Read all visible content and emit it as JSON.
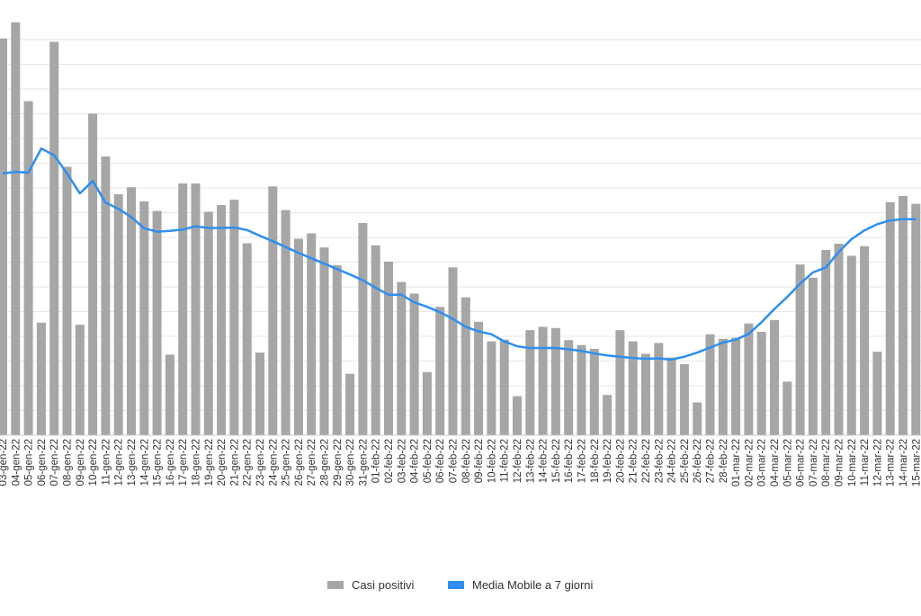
{
  "chart_data": {
    "type": "bar",
    "title": "",
    "xlabel": "",
    "ylabel": "",
    "grid": true,
    "legend_position": "bottom",
    "ylim": [
      0,
      100
    ],
    "categories": [
      "03-gen-22",
      "04-gen-22",
      "05-gen-22",
      "06-gen-22",
      "07-gen-22",
      "08-gen-22",
      "09-gen-22",
      "10-gen-22",
      "11-gen-22",
      "12-gen-22",
      "13-gen-22",
      "14-gen-22",
      "15-gen-22",
      "16-gen-22",
      "17-gen-22",
      "18-gen-22",
      "19-gen-22",
      "20-gen-22",
      "21-gen-22",
      "22-gen-22",
      "23-gen-22",
      "24-gen-22",
      "25-gen-22",
      "26-gen-22",
      "27-gen-22",
      "28-gen-22",
      "29-gen-22",
      "30-gen-22",
      "31-gen-22",
      "01-feb-22",
      "02-feb-22",
      "03-feb-22",
      "04-feb-22",
      "05-feb-22",
      "06-feb-22",
      "07-feb-22",
      "08-feb-22",
      "09-feb-22",
      "10-feb-22",
      "11-feb-22",
      "12-feb-22",
      "13-feb-22",
      "14-feb-22",
      "15-feb-22",
      "16-feb-22",
      "17-feb-22",
      "18-feb-22",
      "19-feb-22",
      "20-feb-22",
      "21-feb-22",
      "22-feb-22",
      "23-feb-22",
      "24-feb-22",
      "25-feb-22",
      "26-feb-22",
      "27-feb-22",
      "28-feb-22",
      "01-mar-22",
      "02-mar-22",
      "03-mar-22",
      "04-mar-22",
      "05-mar-22",
      "06-mar-22",
      "07-mar-22",
      "08-mar-22",
      "09-mar-22",
      "10-mar-22",
      "11-mar-22",
      "12-mar-22",
      "13-mar-22",
      "14-mar-22",
      "15-mar-22"
    ],
    "series": [
      {
        "name": "Casi positivi",
        "color": "#a6a6a6",
        "type": "bar",
        "values": [
          95.5,
          99.4,
          80.4,
          27.1,
          94.7,
          64.6,
          26.6,
          77.4,
          67.1,
          58.0,
          59.7,
          56.3,
          54.0,
          19.4,
          60.6,
          60.6,
          53.8,
          55.4,
          56.7,
          46.2,
          19.9,
          59.9,
          54.2,
          47.3,
          48.6,
          45.2,
          40.9,
          14.8,
          51.1,
          45.7,
          41.8,
          36.9,
          34.1,
          15.2,
          30.9,
          40.4,
          33.2,
          27.3,
          22.6,
          23.0,
          9.4,
          25.3,
          26.1,
          25.8,
          22.9,
          21.7,
          20.8,
          9.7,
          25.3,
          22.6,
          19.6,
          22.2,
          18.7,
          17.1,
          7.9,
          24.3,
          23.2,
          23.5,
          26.9,
          24.9,
          27.7,
          12.9,
          41.1,
          37.9,
          44.6,
          46.1,
          43.2,
          45.5,
          20.1,
          56.1,
          57.6,
          55.7
        ]
      },
      {
        "name": "Media Mobile a 7 giorni",
        "color": "#2e8ff0",
        "type": "line",
        "values": [
          63.0,
          63.4,
          63.2,
          69.0,
          67.4,
          63.0,
          58.2,
          61.2,
          56.0,
          54.5,
          52.5,
          49.8,
          49.0,
          49.2,
          49.5,
          50.3,
          49.9,
          49.9,
          50.0,
          49.4,
          48.0,
          46.7,
          45.3,
          43.9,
          42.6,
          41.3,
          40.0,
          38.7,
          37.3,
          35.5,
          33.8,
          33.8,
          32.0,
          30.9,
          29.6,
          28.0,
          26.1,
          25.0,
          24.3,
          22.6,
          21.4,
          21.0,
          21.0,
          21.0,
          20.7,
          20.3,
          19.7,
          19.2,
          18.9,
          18.6,
          18.4,
          18.5,
          18.2,
          18.9,
          19.9,
          21.1,
          22.3,
          23.0,
          24.4,
          27.2,
          30.4,
          33.3,
          36.5,
          39.2,
          40.4,
          44.1,
          47.2,
          49.3,
          50.8,
          51.7,
          52.0,
          52.0
        ]
      }
    ]
  },
  "legend": {
    "items": [
      {
        "label": "Casi positivi",
        "color": "#a6a6a6",
        "icon": "grey-bar-swatch"
      },
      {
        "label": "Media Mobile a 7 giorni",
        "color": "#2e8ff0",
        "icon": "blue-line-swatch"
      }
    ]
  }
}
